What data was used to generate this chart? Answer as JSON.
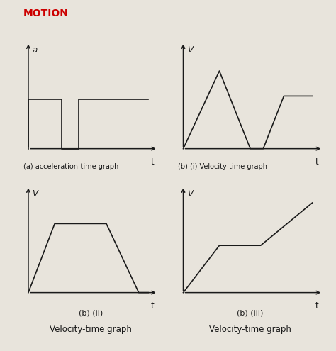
{
  "title": "MOTION",
  "title_color": "#cc0000",
  "bg_color": "#e8e4dc",
  "line_color": "#1a1a1a",
  "graph_a": {
    "label_axis_x": "t",
    "label_axis_y": "a",
    "caption": "(a) acceleration-time graph",
    "x": [
      0.0,
      0.0,
      0.28,
      0.28,
      0.42,
      0.42,
      0.58,
      0.58,
      1.0
    ],
    "y": [
      0.0,
      0.35,
      0.35,
      0.0,
      0.0,
      0.35,
      0.35,
      0.35,
      0.35
    ]
  },
  "graph_bi": {
    "label_axis_x": "t",
    "label_axis_y": "V",
    "caption": "(b) (i) Velocity-time graph",
    "x": [
      0.0,
      0.28,
      0.52,
      0.62,
      0.78,
      1.0
    ],
    "y": [
      0.0,
      0.62,
      0.0,
      0.0,
      0.42,
      0.42
    ]
  },
  "graph_bii": {
    "label_axis_x": "t",
    "label_axis_y": "V",
    "caption": "(b) (ii)",
    "caption2": "Velocity-time graph",
    "x": [
      0.0,
      0.22,
      0.65,
      0.92,
      1.0
    ],
    "y": [
      0.0,
      0.55,
      0.55,
      0.0,
      0.0
    ]
  },
  "graph_biii": {
    "label_axis_x": "t",
    "label_axis_y": "V",
    "caption": "(b) (iii)",
    "caption2": "Velocity-time graph",
    "x": [
      0.0,
      0.28,
      0.6,
      1.0
    ],
    "y": [
      0.0,
      0.42,
      0.42,
      0.8
    ]
  }
}
